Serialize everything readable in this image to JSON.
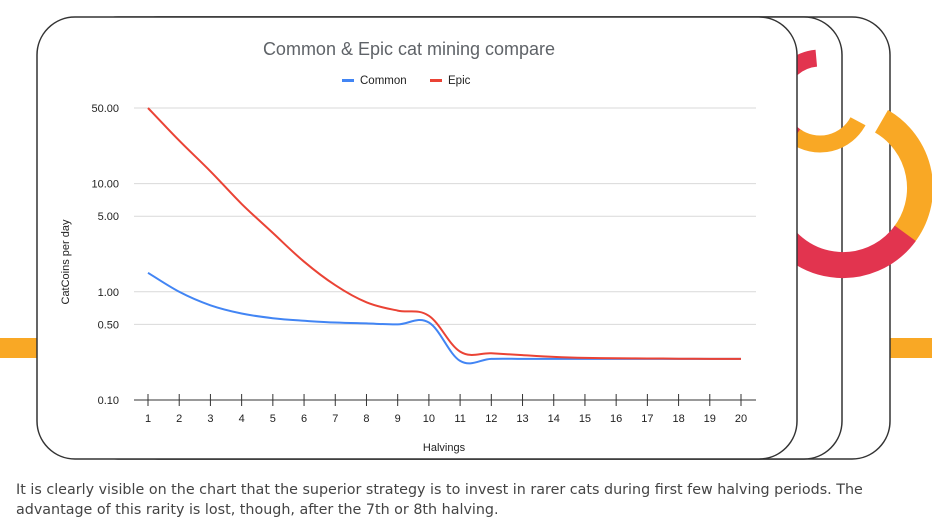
{
  "caption": "It is clearly visible on the chart that the superior strategy is to invest in rarer cats during first few halving periods. The advantage of this rarity is lost, though, after the 7th or 8th halving.",
  "colors": {
    "common": "#4285F4",
    "epic": "#EA4335",
    "deco_red": "#E2344F",
    "deco_orange": "#F9A825",
    "card_border": "#333333"
  },
  "chart_data": {
    "type": "line",
    "title": "Common & Epic cat mining compare",
    "xlabel": "Halvings",
    "ylabel": "CatCoins per day",
    "yscale": "log",
    "ylim": [
      0.1,
      50
    ],
    "yticks": [
      0.1,
      0.5,
      1,
      5,
      10,
      50
    ],
    "ytick_labels": [
      "0.10",
      "0.50",
      "1.00",
      "5.00",
      "10.00",
      "50.00"
    ],
    "x": [
      1,
      2,
      3,
      4,
      5,
      6,
      7,
      8,
      9,
      10,
      11,
      12,
      13,
      14,
      15,
      16,
      17,
      18,
      19,
      20
    ],
    "legend_position": "top",
    "grid": true,
    "series": [
      {
        "name": "Common",
        "values": [
          1.5,
          1.0,
          0.75,
          0.63,
          0.57,
          0.54,
          0.52,
          0.51,
          0.5,
          0.52,
          0.23,
          0.24,
          0.24,
          0.24,
          0.24,
          0.24,
          0.24,
          0.24,
          0.24,
          0.24
        ]
      },
      {
        "name": "Epic",
        "values": [
          50,
          25,
          13,
          6.5,
          3.5,
          1.9,
          1.15,
          0.8,
          0.67,
          0.6,
          0.28,
          0.27,
          0.26,
          0.25,
          0.245,
          0.243,
          0.242,
          0.241,
          0.24,
          0.24
        ]
      }
    ]
  }
}
